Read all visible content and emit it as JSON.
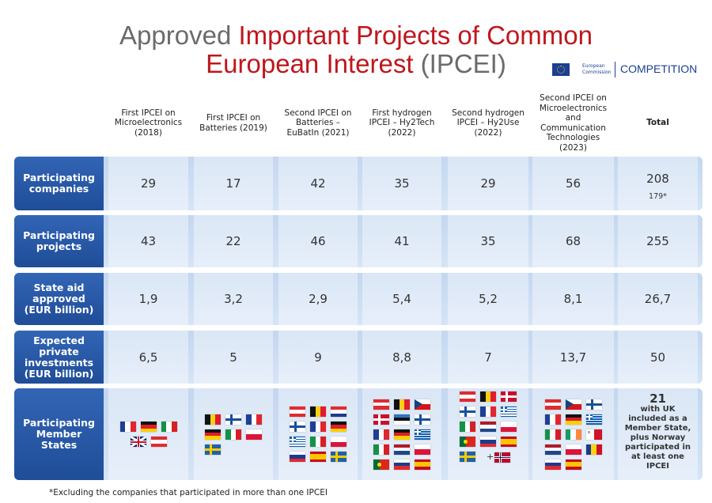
{
  "header": {
    "title_parts": [
      "Approved",
      "Important Projects of Common",
      "European Interest",
      "(IPCEI)"
    ],
    "logo": {
      "line1": "European",
      "line2": "Commission",
      "label": "COMPETITION"
    }
  },
  "table": {
    "columns": [
      "First IPCEI on Microelectronics (2018)",
      "First IPCEI on Batteries (2019)",
      "Second IPCEI on Batteries – EuBatIn (2021)",
      "First hydrogen IPCEI – Hy2Tech (2022)",
      "Second hydrogen IPCEI – Hy2Use (2022)",
      "Second IPCEI on Microelectronics and Communication Technologies (2023)",
      "Total"
    ],
    "rows": [
      {
        "label": "Participating companies",
        "cells": [
          "29",
          "17",
          "42",
          "35",
          "29",
          "56",
          "208"
        ],
        "note": "179*"
      },
      {
        "label": "Participating projects",
        "cells": [
          "43",
          "22",
          "46",
          "41",
          "35",
          "68",
          "255"
        ]
      },
      {
        "label": "State aid approved (EUR billion)",
        "cells": [
          "1,9",
          "3,2",
          "2,9",
          "5,4",
          "5,2",
          "8,1",
          "26,7"
        ]
      },
      {
        "label": "Expected private investments (EUR billion)",
        "cells": [
          "6,5",
          "5",
          "9",
          "8,8",
          "7",
          "13,7",
          "50"
        ]
      },
      {
        "label": "Participating Member States",
        "total": "21",
        "total_note": "with UK included as a Member State, plus Norway participated in at least one IPCEI",
        "extra": "+"
      }
    ]
  },
  "footnote": "*Excluding the companies that participated in more than one IPCEI"
}
